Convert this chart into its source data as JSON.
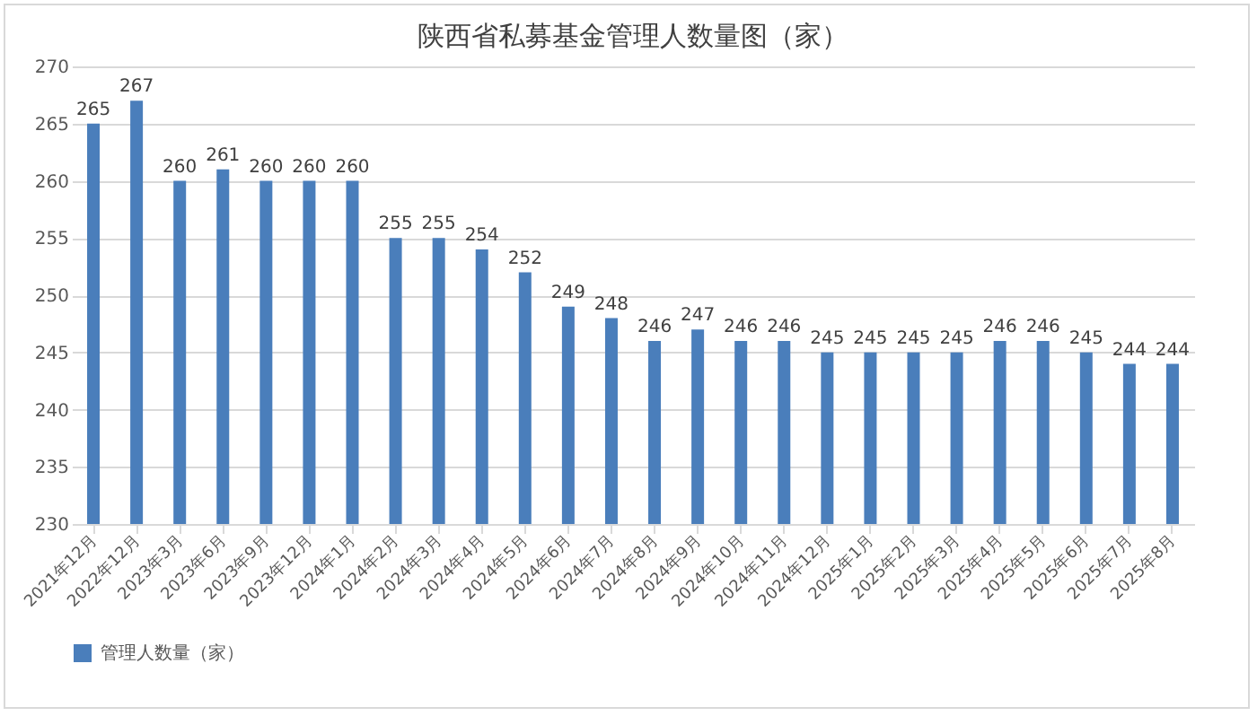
{
  "chart_data": {
    "type": "bar",
    "title": "陕西省私募基金管理人数量图（家）",
    "categories": [
      "2021年12月",
      "2022年12月",
      "2023年3月",
      "2023年6月",
      "2023年9月",
      "2023年12月",
      "2024年1月",
      "2024年2月",
      "2024年3月",
      "2024年4月",
      "2024年5月",
      "2024年6月",
      "2024年7月",
      "2024年8月",
      "2024年9月",
      "2024年10月",
      "2024年11月",
      "2024年12月",
      "2025年1月",
      "2025年2月",
      "2025年3月",
      "2025年4月",
      "2025年5月",
      "2025年6月",
      "2025年7月",
      "2025年8月"
    ],
    "series": [
      {
        "name": "管理人数量（家）",
        "color": "#4a7ebb",
        "values": [
          265,
          267,
          260,
          261,
          260,
          260,
          260,
          255,
          255,
          254,
          252,
          249,
          248,
          246,
          247,
          246,
          246,
          245,
          245,
          245,
          245,
          246,
          246,
          245,
          244,
          244
        ]
      }
    ],
    "ylim": [
      230,
      270
    ],
    "yticks": [
      230,
      235,
      240,
      245,
      250,
      255,
      260,
      265,
      270
    ],
    "grid": "y",
    "legend": "bottom",
    "data_labels": true
  }
}
